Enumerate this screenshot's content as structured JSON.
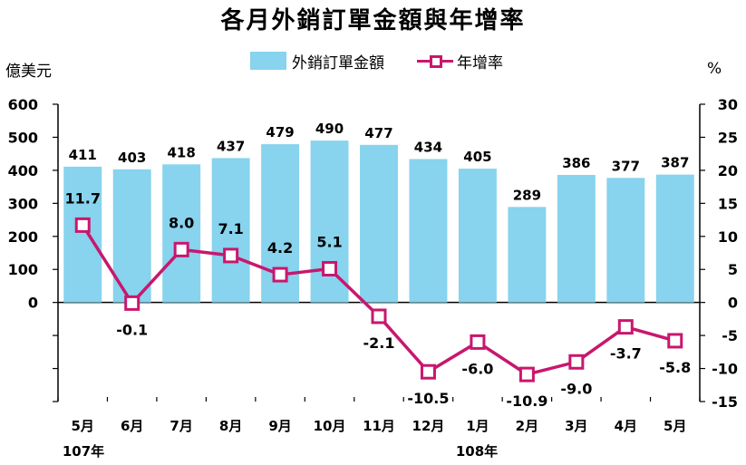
{
  "chart_data": {
    "type": "bar",
    "title": "各月外銷訂單金額與年增率",
    "ylabel_left": "億美元",
    "ylabel_right": "%",
    "categories": [
      "5月",
      "6月",
      "7月",
      "8月",
      "9月",
      "10月",
      "11月",
      "12月",
      "1月",
      "2月",
      "3月",
      "4月",
      "5月"
    ],
    "year_labels": [
      {
        "label": "107年",
        "category_index": 0
      },
      {
        "label": "108年",
        "category_index": 8
      }
    ],
    "series": [
      {
        "name": "外銷訂單金額",
        "type": "bar",
        "axis": "left",
        "color": "#88d3ee",
        "values": [
          411,
          403,
          418,
          437,
          479,
          490,
          477,
          434,
          405,
          289,
          386,
          377,
          387
        ]
      },
      {
        "name": "年增率",
        "type": "line",
        "axis": "right",
        "color": "#c8176e",
        "values": [
          11.7,
          -0.1,
          8.0,
          7.1,
          4.2,
          5.1,
          -2.1,
          -10.5,
          -6.0,
          -10.9,
          -9.0,
          -3.7,
          -5.8
        ],
        "labels": [
          "11.7",
          "-0.1",
          "8.0",
          "7.1",
          "4.2",
          "5.1",
          "-2.1",
          "-10.5",
          "-6.0",
          "-10.9",
          "-9.0",
          "-3.7",
          "-5.8"
        ]
      }
    ],
    "y_left": {
      "ticks": [
        0,
        100,
        200,
        300,
        400,
        500,
        600
      ],
      "range": [
        -300,
        600
      ]
    },
    "y_right": {
      "ticks": [
        -15,
        -10,
        -5,
        0,
        5,
        10,
        15,
        20,
        25,
        30
      ],
      "range": [
        -15,
        30
      ]
    },
    "grid": false,
    "legend_position": "top-center"
  }
}
